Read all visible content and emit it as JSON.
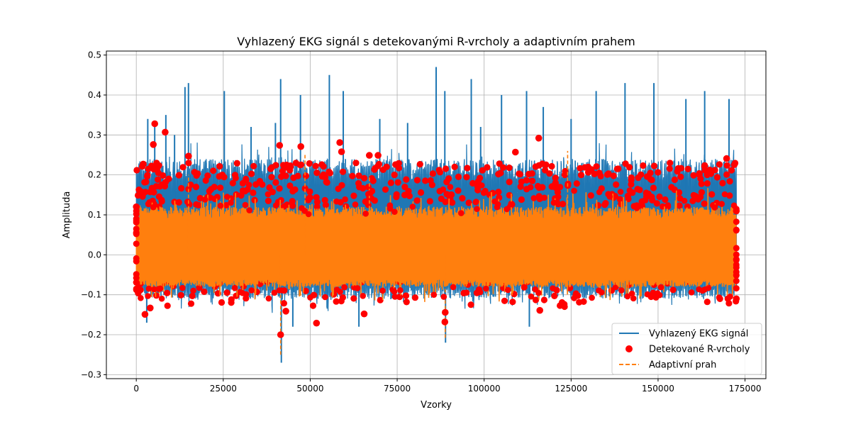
{
  "chart_data": {
    "type": "line",
    "title": "Vyhlazený EKG signál s detekovanými R-vrcholy a adaptivním prahem",
    "xlabel": "Vzorky",
    "ylabel": "Amplituda",
    "xlim": [
      -8600,
      181000
    ],
    "ylim": [
      -0.31,
      0.51
    ],
    "xticks": [
      0,
      25000,
      50000,
      75000,
      100000,
      125000,
      150000,
      175000
    ],
    "xtick_labels": [
      "0",
      "25000",
      "50000",
      "75000",
      "100000",
      "125000",
      "150000",
      "175000"
    ],
    "yticks": [
      -0.3,
      -0.2,
      -0.1,
      0.0,
      0.1,
      0.2,
      0.3,
      0.4,
      0.5
    ],
    "ytick_labels": [
      "−0.3",
      "−0.2",
      "−0.1",
      "0.0",
      "0.1",
      "0.2",
      "0.3",
      "0.4",
      "0.5"
    ],
    "grid": true,
    "legend_position": "lower-right",
    "x_extent": [
      0,
      172500
    ],
    "series": [
      {
        "name": "Vyhlazený EKG signál",
        "style": "line",
        "color": "#1f77b4",
        "typical_upper": 0.2,
        "typical_lower": -0.1,
        "spikes": [
          {
            "x": 3300,
            "y": 0.34
          },
          {
            "x": 5300,
            "y": 0.33
          },
          {
            "x": 8500,
            "y": 0.35
          },
          {
            "x": 14000,
            "y": 0.42
          },
          {
            "x": 15000,
            "y": 0.43
          },
          {
            "x": 25300,
            "y": 0.41
          },
          {
            "x": 40000,
            "y": 0.33
          },
          {
            "x": 41500,
            "y": 0.44
          },
          {
            "x": 47200,
            "y": 0.4
          },
          {
            "x": 55500,
            "y": 0.45
          },
          {
            "x": 59500,
            "y": 0.41
          },
          {
            "x": 70000,
            "y": 0.34
          },
          {
            "x": 86200,
            "y": 0.47
          },
          {
            "x": 88700,
            "y": 0.41
          },
          {
            "x": 96300,
            "y": 0.44
          },
          {
            "x": 105000,
            "y": 0.4
          },
          {
            "x": 112200,
            "y": 0.41
          },
          {
            "x": 117000,
            "y": 0.37
          },
          {
            "x": 125000,
            "y": 0.34
          },
          {
            "x": 132200,
            "y": 0.41
          },
          {
            "x": 140500,
            "y": 0.43
          },
          {
            "x": 148800,
            "y": 0.43
          },
          {
            "x": 158000,
            "y": 0.39
          },
          {
            "x": 163400,
            "y": 0.41
          },
          {
            "x": 170400,
            "y": 0.39
          },
          {
            "x": 11000,
            "y": 0.3
          },
          {
            "x": 33000,
            "y": 0.32
          },
          {
            "x": 78000,
            "y": 0.33
          },
          {
            "x": 99000,
            "y": 0.32
          },
          {
            "x": 41700,
            "y": -0.27
          },
          {
            "x": 88900,
            "y": -0.22
          },
          {
            "x": 3000,
            "y": -0.17
          },
          {
            "x": 45000,
            "y": -0.18
          },
          {
            "x": 64000,
            "y": -0.18
          },
          {
            "x": 113000,
            "y": -0.18
          }
        ]
      },
      {
        "name": "Detekované R-vrcholy",
        "style": "marker",
        "color": "#ff0000",
        "notable_points": [
          {
            "x": 5300,
            "y": 0.328
          },
          {
            "x": 8300,
            "y": 0.307
          },
          {
            "x": 4900,
            "y": 0.276
          },
          {
            "x": 41200,
            "y": 0.274
          },
          {
            "x": 47300,
            "y": 0.271
          },
          {
            "x": 58500,
            "y": 0.281
          },
          {
            "x": 59000,
            "y": 0.258
          },
          {
            "x": 67000,
            "y": 0.249
          },
          {
            "x": 69500,
            "y": 0.249
          },
          {
            "x": 109000,
            "y": 0.257
          },
          {
            "x": 115700,
            "y": 0.292
          },
          {
            "x": 169700,
            "y": 0.241
          },
          {
            "x": 15000,
            "y": 0.247
          },
          {
            "x": 2000,
            "y": 0.227
          },
          {
            "x": 41500,
            "y": -0.2
          },
          {
            "x": 51800,
            "y": -0.171
          },
          {
            "x": 2500,
            "y": -0.149
          },
          {
            "x": 88700,
            "y": -0.168
          },
          {
            "x": 88800,
            "y": -0.144
          },
          {
            "x": 65500,
            "y": -0.148
          },
          {
            "x": 4000,
            "y": -0.133
          },
          {
            "x": 43000,
            "y": -0.141
          },
          {
            "x": 116000,
            "y": -0.139
          },
          {
            "x": 123000,
            "y": -0.124
          },
          {
            "x": 0,
            "y": 0.12
          },
          {
            "x": 172500,
            "y": 0.11
          },
          {
            "x": 172500,
            "y": -0.11
          }
        ]
      },
      {
        "name": "Adaptivní prah",
        "style": "dashed",
        "color": "#ff7f0e",
        "typical_upper": 0.12,
        "typical_lower": -0.08,
        "spikes": [
          {
            "x": 48500,
            "y": 0.25
          },
          {
            "x": 124000,
            "y": 0.26
          },
          {
            "x": 41500,
            "y": -0.25
          },
          {
            "x": 88800,
            "y": -0.21
          },
          {
            "x": 67000,
            "y": 0.2
          },
          {
            "x": 15000,
            "y": 0.2
          }
        ]
      }
    ]
  }
}
